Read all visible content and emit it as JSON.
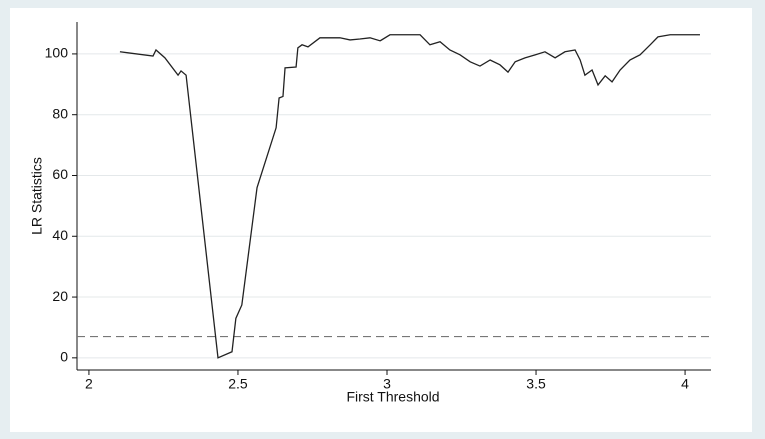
{
  "chart_data": {
    "type": "line",
    "x_label": "First Threshold",
    "y_label": "LR Statistics",
    "xlim": [
      1.96,
      4.087
    ],
    "ylim": [
      -4,
      110.5
    ],
    "xticks": [
      2,
      2.5,
      3,
      3.5,
      4
    ],
    "yticks": [
      0,
      20,
      40,
      60,
      80,
      100
    ],
    "grid": true,
    "color": "#222222",
    "reference_line": 7,
    "x": [
      2.104,
      2.215,
      2.225,
      2.255,
      2.299,
      2.309,
      2.326,
      2.433,
      2.48,
      2.493,
      2.513,
      2.564,
      2.628,
      2.638,
      2.651,
      2.658,
      2.695,
      2.701,
      2.715,
      2.735,
      2.775,
      2.842,
      2.876,
      2.909,
      2.943,
      2.977,
      3.01,
      3.111,
      3.144,
      3.178,
      3.211,
      3.245,
      3.279,
      3.312,
      3.346,
      3.379,
      3.406,
      3.43,
      3.463,
      3.497,
      3.53,
      3.564,
      3.597,
      3.631,
      3.648,
      3.664,
      3.688,
      3.708,
      3.732,
      3.755,
      3.782,
      3.815,
      3.849,
      3.883,
      3.909,
      3.95,
      4.05
    ],
    "values": [
      100.7,
      99.3,
      101.3,
      98.7,
      93,
      94.4,
      93,
      0,
      2,
      13,
      17.4,
      56,
      75.7,
      85.5,
      86,
      95.4,
      95.7,
      102,
      103,
      102.3,
      105.3,
      105.3,
      104.6,
      104.9,
      105.3,
      104.3,
      106.3,
      106.3,
      103,
      104,
      101.3,
      99.7,
      97.4,
      96,
      98,
      96.4,
      94,
      97.4,
      98.7,
      99.7,
      100.7,
      98.7,
      100.7,
      101.3,
      98,
      93,
      94.7,
      89.8,
      92.8,
      90.8,
      94.7,
      98,
      99.7,
      103,
      105.6,
      106.3,
      106.3
    ]
  }
}
